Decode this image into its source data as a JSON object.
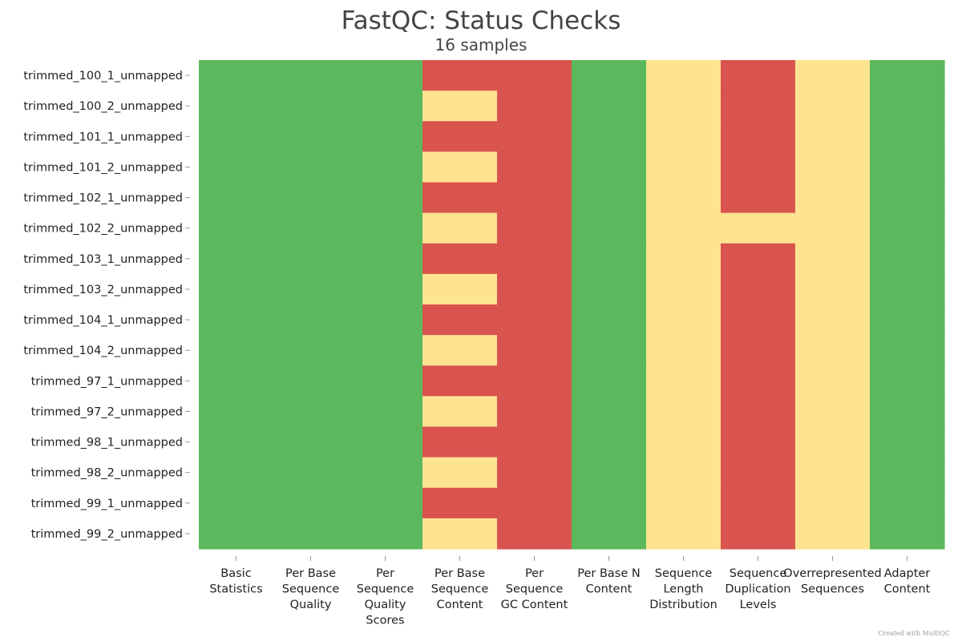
{
  "chart_data": {
    "type": "heatmap",
    "title": "FastQC: Status Checks",
    "subtitle": "16 samples",
    "status_colors": {
      "pass": "#5cb85c",
      "warn": "#fee391",
      "fail": "#d9534f"
    },
    "columns": [
      {
        "label": "Basic Statistics",
        "lines": [
          "Basic",
          "Statistics"
        ]
      },
      {
        "label": "Per Base Sequence Quality",
        "lines": [
          "Per Base",
          "Sequence",
          "Quality"
        ]
      },
      {
        "label": "Per Sequence Quality Scores",
        "lines": [
          "Per",
          "Sequence",
          "Quality",
          "Scores"
        ]
      },
      {
        "label": "Per Base Sequence Content",
        "lines": [
          "Per Base",
          "Sequence",
          "Content"
        ]
      },
      {
        "label": "Per Sequence GC Content",
        "lines": [
          "Per",
          "Sequence",
          "GC Content"
        ]
      },
      {
        "label": "Per Base N Content",
        "lines": [
          "Per Base N",
          "Content"
        ]
      },
      {
        "label": "Sequence Length Distribution",
        "lines": [
          "Sequence",
          "Length",
          "Distribution"
        ]
      },
      {
        "label": "Sequence Duplication Levels",
        "lines": [
          "Sequence",
          "Duplication",
          "Levels"
        ]
      },
      {
        "label": "Overrepresented Sequences",
        "lines": [
          "Overrepresented",
          "Sequences"
        ]
      },
      {
        "label": "Adapter Content",
        "lines": [
          "Adapter",
          "Content"
        ]
      }
    ],
    "rows": [
      "trimmed_100_1_unmapped",
      "trimmed_100_2_unmapped",
      "trimmed_101_1_unmapped",
      "trimmed_101_2_unmapped",
      "trimmed_102_1_unmapped",
      "trimmed_102_2_unmapped",
      "trimmed_103_1_unmapped",
      "trimmed_103_2_unmapped",
      "trimmed_104_1_unmapped",
      "trimmed_104_2_unmapped",
      "trimmed_97_1_unmapped",
      "trimmed_97_2_unmapped",
      "trimmed_98_1_unmapped",
      "trimmed_98_2_unmapped",
      "trimmed_99_1_unmapped",
      "trimmed_99_2_unmapped"
    ],
    "values": [
      [
        "pass",
        "pass",
        "pass",
        "fail",
        "fail",
        "pass",
        "warn",
        "fail",
        "warn",
        "pass"
      ],
      [
        "pass",
        "pass",
        "pass",
        "warn",
        "fail",
        "pass",
        "warn",
        "fail",
        "warn",
        "pass"
      ],
      [
        "pass",
        "pass",
        "pass",
        "fail",
        "fail",
        "pass",
        "warn",
        "fail",
        "warn",
        "pass"
      ],
      [
        "pass",
        "pass",
        "pass",
        "warn",
        "fail",
        "pass",
        "warn",
        "fail",
        "warn",
        "pass"
      ],
      [
        "pass",
        "pass",
        "pass",
        "fail",
        "fail",
        "pass",
        "warn",
        "fail",
        "warn",
        "pass"
      ],
      [
        "pass",
        "pass",
        "pass",
        "warn",
        "fail",
        "pass",
        "warn",
        "warn",
        "warn",
        "pass"
      ],
      [
        "pass",
        "pass",
        "pass",
        "fail",
        "fail",
        "pass",
        "warn",
        "fail",
        "warn",
        "pass"
      ],
      [
        "pass",
        "pass",
        "pass",
        "warn",
        "fail",
        "pass",
        "warn",
        "fail",
        "warn",
        "pass"
      ],
      [
        "pass",
        "pass",
        "pass",
        "fail",
        "fail",
        "pass",
        "warn",
        "fail",
        "warn",
        "pass"
      ],
      [
        "pass",
        "pass",
        "pass",
        "warn",
        "fail",
        "pass",
        "warn",
        "fail",
        "warn",
        "pass"
      ],
      [
        "pass",
        "pass",
        "pass",
        "fail",
        "fail",
        "pass",
        "warn",
        "fail",
        "warn",
        "pass"
      ],
      [
        "pass",
        "pass",
        "pass",
        "warn",
        "fail",
        "pass",
        "warn",
        "fail",
        "warn",
        "pass"
      ],
      [
        "pass",
        "pass",
        "pass",
        "fail",
        "fail",
        "pass",
        "warn",
        "fail",
        "warn",
        "pass"
      ],
      [
        "pass",
        "pass",
        "pass",
        "warn",
        "fail",
        "pass",
        "warn",
        "fail",
        "warn",
        "pass"
      ],
      [
        "pass",
        "pass",
        "pass",
        "fail",
        "fail",
        "pass",
        "warn",
        "fail",
        "warn",
        "pass"
      ],
      [
        "pass",
        "pass",
        "pass",
        "warn",
        "fail",
        "pass",
        "warn",
        "fail",
        "warn",
        "pass"
      ]
    ]
  },
  "footer": {
    "credit": "Created with MultiQC"
  }
}
